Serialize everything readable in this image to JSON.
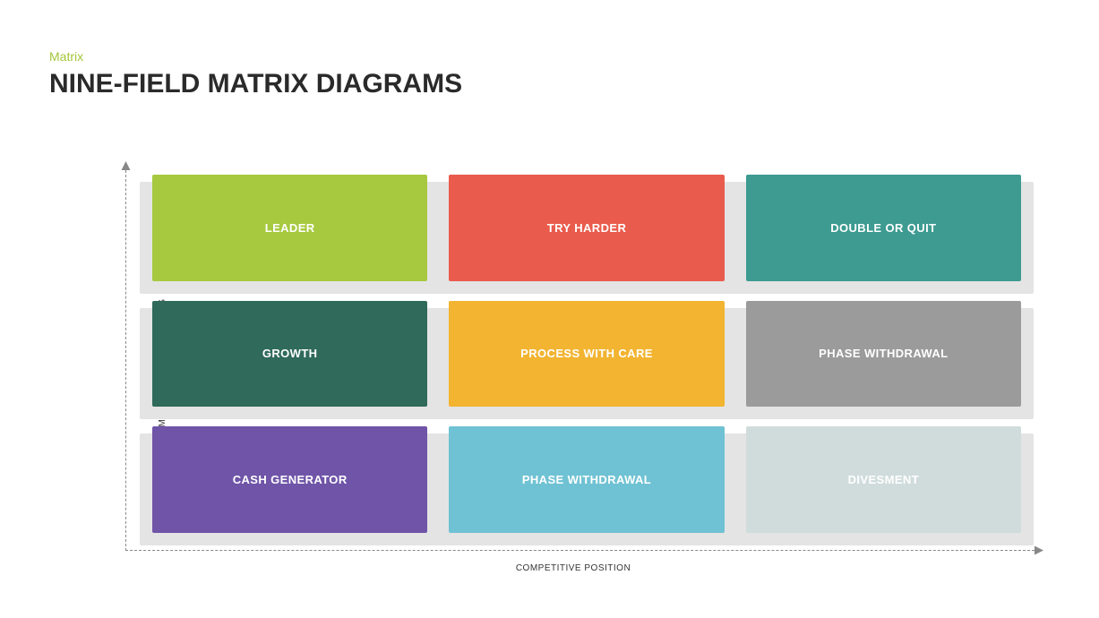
{
  "header": {
    "subtitle": "Matrix",
    "subtitle_color": "#a4c639",
    "title": "NINE-FIELD MATRIX DIAGRAMS",
    "title_color": "#2a2a2a"
  },
  "matrix": {
    "type": "nine-field-matrix",
    "y_axis_label": "MARKET ATTRACTIVENESS",
    "x_axis_label": "COMPETITIVE POSITION",
    "axis_color": "#888888",
    "label_color": "#333333",
    "label_fontsize": 10,
    "cell_text_color": "#ffffff",
    "cell_fontsize": 13,
    "shadow_fill": "#e4e4e4",
    "cells": [
      {
        "label": "LEADER",
        "color": "#a7c93f"
      },
      {
        "label": "TRY HARDER",
        "color": "#e95b4c"
      },
      {
        "label": "DOUBLE OR QUIT",
        "color": "#3d9b91"
      },
      {
        "label": "GROWTH",
        "color": "#2f6a5a"
      },
      {
        "label": "PROCESS WITH CARE",
        "color": "#f2b431"
      },
      {
        "label": "PHASE WITHDRAWAL",
        "color": "#9b9b9b"
      },
      {
        "label": "CASH GENERATOR",
        "color": "#6f54a8"
      },
      {
        "label": "PHASE WITHDRAWAL",
        "color": "#6fc2d3"
      },
      {
        "label": "DIVESMENT",
        "color": "#d0dcdc"
      }
    ]
  }
}
